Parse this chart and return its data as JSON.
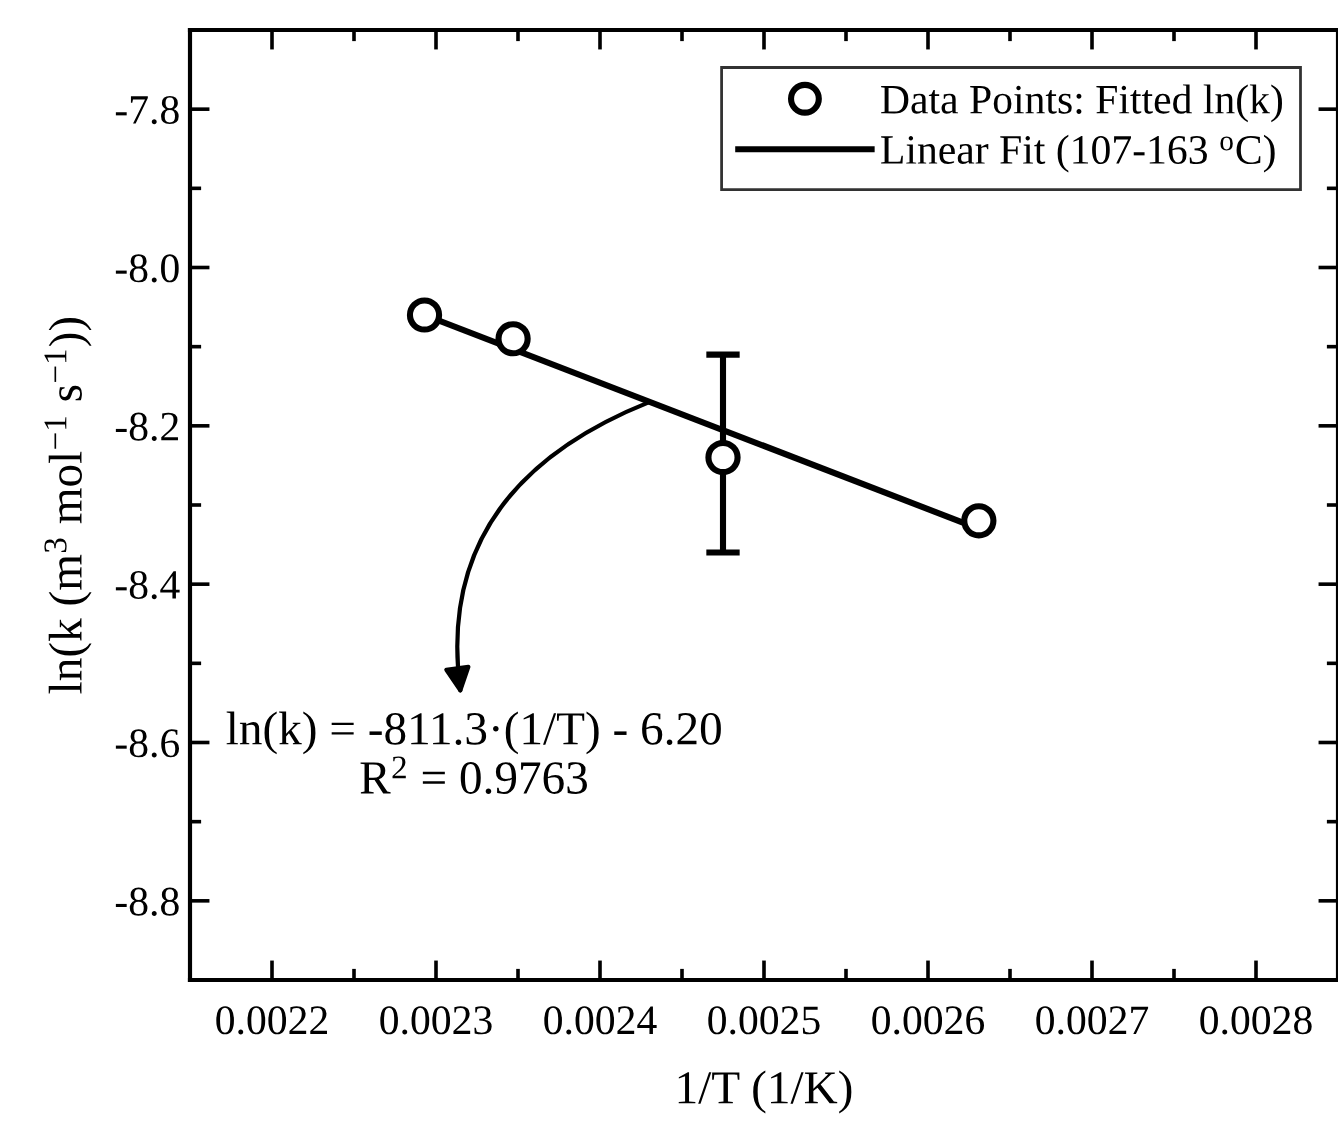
{
  "chart_data": {
    "type": "scatter",
    "xlabel": "1/T (1/K)",
    "ylabel": "ln(k (m$^{3}$ mol$^{−1}$ s$^{−1}$))",
    "xlim": [
      0.00215,
      0.00285
    ],
    "xticks": [
      0.0022,
      0.0023,
      0.0024,
      0.0025,
      0.0026,
      0.0027,
      0.0028
    ],
    "ylim": [
      -8.9,
      -7.7
    ],
    "yticks": [
      -8.8,
      -8.6,
      -8.4,
      -8.2,
      {
        "value": -8.0,
        "label": "-8.0"
      },
      -7.8
    ],
    "legend": "top right",
    "grid": false,
    "series": [
      {
        "name": "Data Points: Fitted ln(k)",
        "marker": "circle",
        "color": "#000000",
        "x": [
          0.002293,
          0.002347,
          0.002475,
          0.002631
        ],
        "values": [
          -8.06,
          -8.09,
          -8.24,
          -8.32
        ],
        "errors": [
          null,
          null,
          [
            -8.36,
            -8.11
          ],
          null
        ]
      },
      {
        "name": "Linear Fit (107-163 $^{o}$C)",
        "type": "line",
        "marker": "none",
        "line_style": "solid",
        "color": "#000000",
        "x": [
          0.002293,
          0.002631
        ],
        "values": [
          -8.06,
          -8.33
        ]
      }
    ],
    "annotations": [
      {
        "text": "ln(k) = -811.3·(1/T) - 6.20\nR$^{2}$ = 0.9763",
        "x": 0.00243,
        "y": -8.17
      }
    ]
  }
}
